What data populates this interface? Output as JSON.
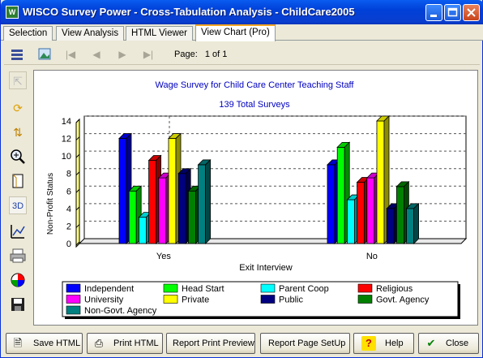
{
  "window": {
    "title": "WISCO Survey Power - Cross-Tabulation Analysis - ChildCare2005",
    "icon": "app-logo",
    "controls": [
      "minimize",
      "maximize",
      "close"
    ]
  },
  "tabs": [
    {
      "label": "Selection",
      "active": false
    },
    {
      "label": "View Analysis",
      "active": false
    },
    {
      "label": "HTML Viewer",
      "active": false
    },
    {
      "label": "View Chart (Pro)",
      "active": true
    }
  ],
  "toolbar": {
    "page_label": "Page:",
    "page_value": "1 of 1"
  },
  "sidebar_tools": [
    "pointer-icon",
    "refresh-icon",
    "sort-icon",
    "zoom-icon",
    "page-icon",
    "3d-icon",
    "chart-edit-icon",
    "print-icon",
    "palette-icon",
    "save-icon"
  ],
  "sidebar_3d_label": "3D",
  "chart_data": {
    "type": "bar",
    "title": "Wage Survey for Child Care Center Teaching Staff",
    "subtitle": "139 Total Surveys",
    "xlabel": "Exit Interview",
    "ylabel": "Non-Profit Status",
    "categories": [
      "Yes",
      "No"
    ],
    "ylim": [
      0,
      14
    ],
    "yticks": [
      0,
      2,
      4,
      6,
      8,
      10,
      12,
      14
    ],
    "grid": true,
    "legend_position": "bottom",
    "series": [
      {
        "name": "Independent",
        "color": "#0000FF",
        "values": [
          12,
          9
        ]
      },
      {
        "name": "Head Start",
        "color": "#00FF00",
        "values": [
          6,
          11
        ]
      },
      {
        "name": "Parent Coop",
        "color": "#00FFFF",
        "values": [
          3,
          5
        ]
      },
      {
        "name": "Religious",
        "color": "#FF0000",
        "values": [
          9.5,
          7
        ]
      },
      {
        "name": "University",
        "color": "#FF00FF",
        "values": [
          7.5,
          7.5
        ]
      },
      {
        "name": "Private",
        "color": "#FFFF00",
        "values": [
          12,
          14
        ]
      },
      {
        "name": "Public",
        "color": "#000080",
        "values": [
          8,
          4
        ]
      },
      {
        "name": "Govt. Agency",
        "color": "#008000",
        "values": [
          6,
          6.5
        ]
      },
      {
        "name": "Non-Govt. Agency",
        "color": "#008080",
        "values": [
          9,
          4
        ]
      }
    ]
  },
  "buttons": {
    "save_html": "Save HTML",
    "print_html": "Print HTML",
    "report_print_preview": "Report Print Preview",
    "report_page_setup": "Report Page SetUp",
    "help": "Help",
    "close": "Close"
  }
}
